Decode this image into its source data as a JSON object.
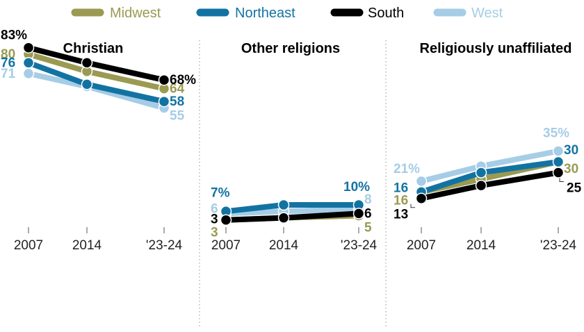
{
  "colors": {
    "Midwest": "#9a9a52",
    "Northeast": "#1273a3",
    "South": "#000000",
    "West": "#a6cde6"
  },
  "chart_data": [
    {
      "type": "line",
      "title": "Christian",
      "x": [
        "2007",
        "2014",
        "'23-24"
      ],
      "ylim": [
        0,
        100
      ],
      "series": [
        {
          "name": "Midwest",
          "values": [
            80,
            72,
            64
          ],
          "labels": [
            "80",
            "",
            "64"
          ]
        },
        {
          "name": "Northeast",
          "values": [
            76,
            66,
            58
          ],
          "labels": [
            "76",
            "",
            "58"
          ]
        },
        {
          "name": "South",
          "values": [
            83,
            76,
            68
          ],
          "labels": [
            "83%",
            "",
            "68%"
          ]
        },
        {
          "name": "West",
          "values": [
            71,
            65,
            55
          ],
          "labels": [
            "71",
            "",
            "55"
          ]
        }
      ]
    },
    {
      "type": "line",
      "title": "Other religions",
      "x": [
        "2007",
        "2014",
        "'23-24"
      ],
      "ylim": [
        0,
        100
      ],
      "series": [
        {
          "name": "Midwest",
          "values": [
            3,
            4,
            5
          ],
          "labels": [
            "3",
            "",
            "5"
          ]
        },
        {
          "name": "Northeast",
          "values": [
            7,
            10,
            10
          ],
          "labels": [
            "7%",
            "",
            "10%"
          ]
        },
        {
          "name": "South",
          "values": [
            3,
            4,
            6
          ],
          "labels": [
            "3",
            "",
            "6"
          ]
        },
        {
          "name": "West",
          "values": [
            6,
            7,
            8
          ],
          "labels": [
            "6",
            "",
            "8"
          ]
        }
      ]
    },
    {
      "type": "line",
      "title": "Religiously unaffiliated",
      "x": [
        "2007",
        "2014",
        "'23-24"
      ],
      "ylim": [
        0,
        100
      ],
      "series": [
        {
          "name": "Midwest",
          "values": [
            16,
            22,
            30
          ],
          "labels": [
            "16",
            "",
            "30"
          ]
        },
        {
          "name": "Northeast",
          "values": [
            16,
            25,
            30
          ],
          "labels": [
            "16",
            "",
            "30"
          ]
        },
        {
          "name": "South",
          "values": [
            13,
            19,
            25
          ],
          "labels": [
            "13",
            "",
            "25"
          ]
        },
        {
          "name": "West",
          "values": [
            21,
            28,
            35
          ],
          "labels": [
            "21%",
            "",
            "35%"
          ]
        }
      ]
    }
  ]
}
